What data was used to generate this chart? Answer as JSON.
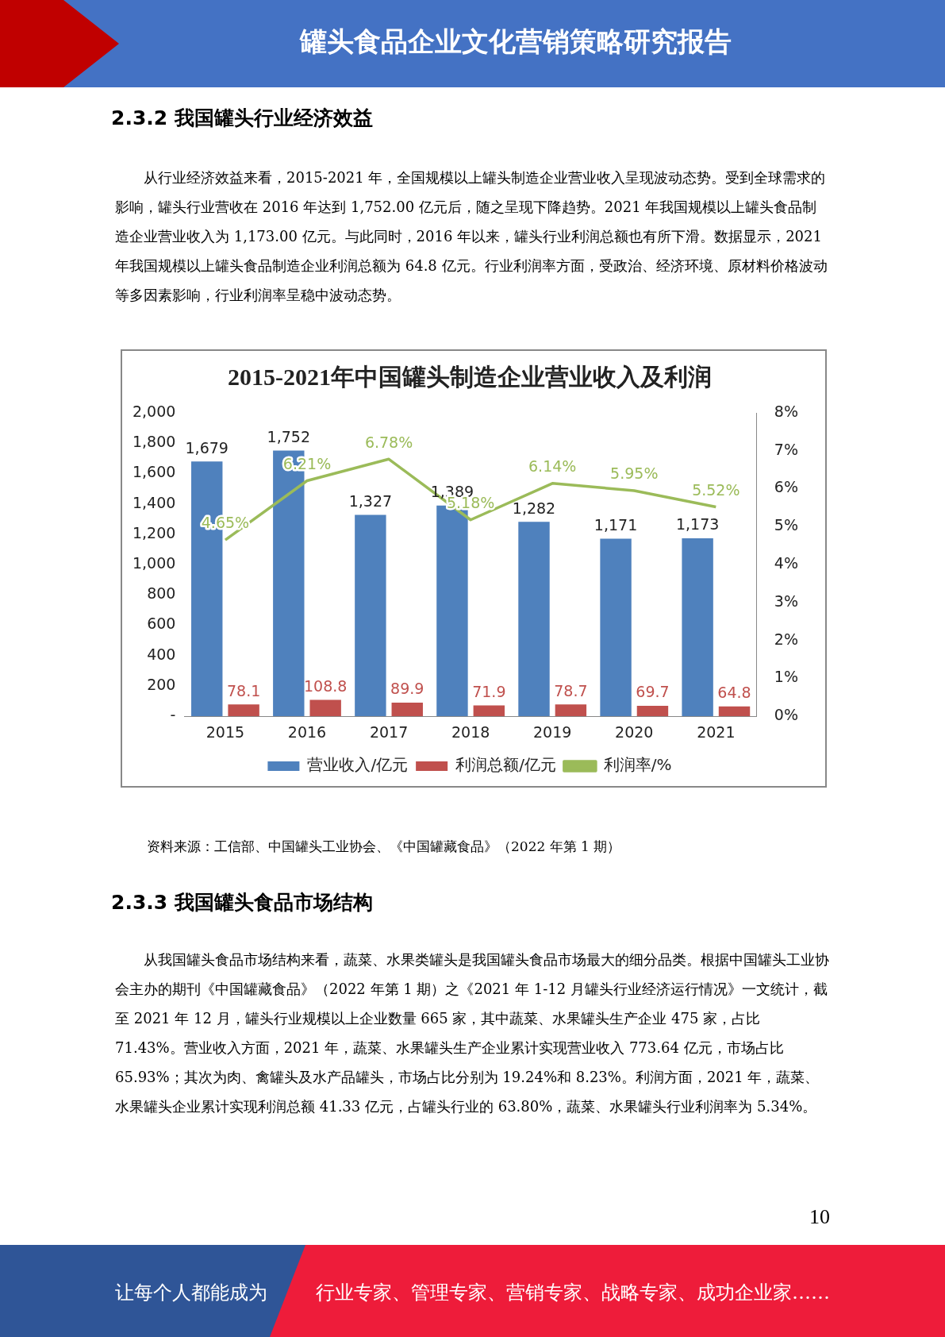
{
  "chart_data": {
    "type": "bar",
    "title": "2015-2021年中国罐头制造企业营业收入及利润",
    "categories": [
      "2015",
      "2016",
      "2017",
      "2018",
      "2019",
      "2020",
      "2021"
    ],
    "series": [
      {
        "name": "营业收入/亿元",
        "color": "#4f81bd",
        "values": [
          1679,
          1752,
          1327,
          1389,
          1282,
          1171,
          1173
        ],
        "value_labels": [
          "1,679",
          "1,752",
          "1,327",
          "1,389",
          "1,282",
          "1,171",
          "1,173"
        ]
      },
      {
        "name": "利润总额/亿元",
        "color": "#c0504d",
        "values": [
          78.1,
          108.8,
          89.9,
          71.9,
          78.7,
          69.7,
          64.8
        ],
        "value_labels": [
          "78.1",
          "108.8",
          "89.9",
          "71.9",
          "78.7",
          "69.7",
          "64.8"
        ]
      },
      {
        "name": "利润率/%",
        "type": "line",
        "axis": "y2",
        "color": "#9bbb59",
        "values": [
          4.65,
          6.21,
          6.78,
          5.18,
          6.14,
          5.95,
          5.52
        ],
        "value_labels": [
          "4.65%",
          "6.21%",
          "6.78%",
          "5.18%",
          "6.14%",
          "5.95%",
          "5.52%"
        ]
      }
    ],
    "ylim": [
      0,
      2000
    ],
    "yticks": [
      {
        "value": 0,
        "label": "-"
      },
      200,
      400,
      600,
      800,
      {
        "value": 1000,
        "label": "1,000"
      },
      {
        "value": 1200,
        "label": "1,200"
      },
      {
        "value": 1400,
        "label": "1,400"
      },
      {
        "value": 1600,
        "label": "1,600"
      },
      {
        "value": 1800,
        "label": "1,800"
      },
      {
        "value": 2000,
        "label": "2,000"
      }
    ],
    "y2lim": [
      0,
      8
    ],
    "y2ticks": [
      {
        "value": 0,
        "label": "0%"
      },
      {
        "value": 1,
        "label": "1%"
      },
      {
        "value": 2,
        "label": "2%"
      },
      {
        "value": 3,
        "label": "3%"
      },
      {
        "value": 4,
        "label": "4%"
      },
      {
        "value": 5,
        "label": "5%"
      },
      {
        "value": 6,
        "label": "6%"
      },
      {
        "value": 7,
        "label": "7%"
      },
      {
        "value": 8,
        "label": "8%"
      }
    ],
    "grid": false,
    "legend": "bottom",
    "marker": "none",
    "annotations": [
      "罐头食品企业文化营销策略研究报告",
      "2.3.2 我国罐头行业经济效益",
      "从行业经济效益来看，2015-2021 年，全国规模以上罐头制造企业营业收入呈现波动态势。受到全球需求的影响，罐头行业营收在 2016 年达到 1,752.00 亿元后，随之呈现下降趋势。2021 年我国规模以上罐头食品制造企业营业收入为 1,173.00 亿元。与此同时，2016 年以来，罐头行业利润总额也有所下滑。数据显示，2021 年我国规模以上罐头食品制造企业利润总额为 64.8 亿元。行业利润率方面，受政治、经济环境、原材料价格波动等多因素影响，行业利润率呈稳中波动态势。",
      "资料来源：工信部、中国罐头工业协会、《中国罐藏食品》（2022 年第 1 期）",
      "2.3.3 我国罐头食品市场结构",
      "从我国罐头食品市场结构来看，蔬菜、水果类罐头是我国罐头食品市场最大的细分品类。根据中国罐头工业协会主办的期刊《中国罐藏食品》（2022 年第 1 期）之《2021 年 1-12 月罐头行业经济运行情况》一文统计，截至 2021 年 12 月，罐头行业规模以上企业数量 665 家，其中蔬菜、水果罐头生产企业 475 家，占比 71.43%。营业收入方面，2021 年，蔬菜、水果罐头生产企业累计实现营业收入 773.64 亿元，市场占比 65.93%；其次为肉、禽罐头及水产品罐头，市场占比分别为 19.24%和 8.23%。利润方面，2021 年，蔬菜、水果罐头企业累计实现利润总额 41.33 亿元，占罐头行业的 63.80%，蔬菜、水果罐头行业利润率为 5.34%。",
      "10",
      "让每个人都能成为",
      "行业专家、管理专家、营销专家、战略专家、成功企业家……"
    ]
  }
}
